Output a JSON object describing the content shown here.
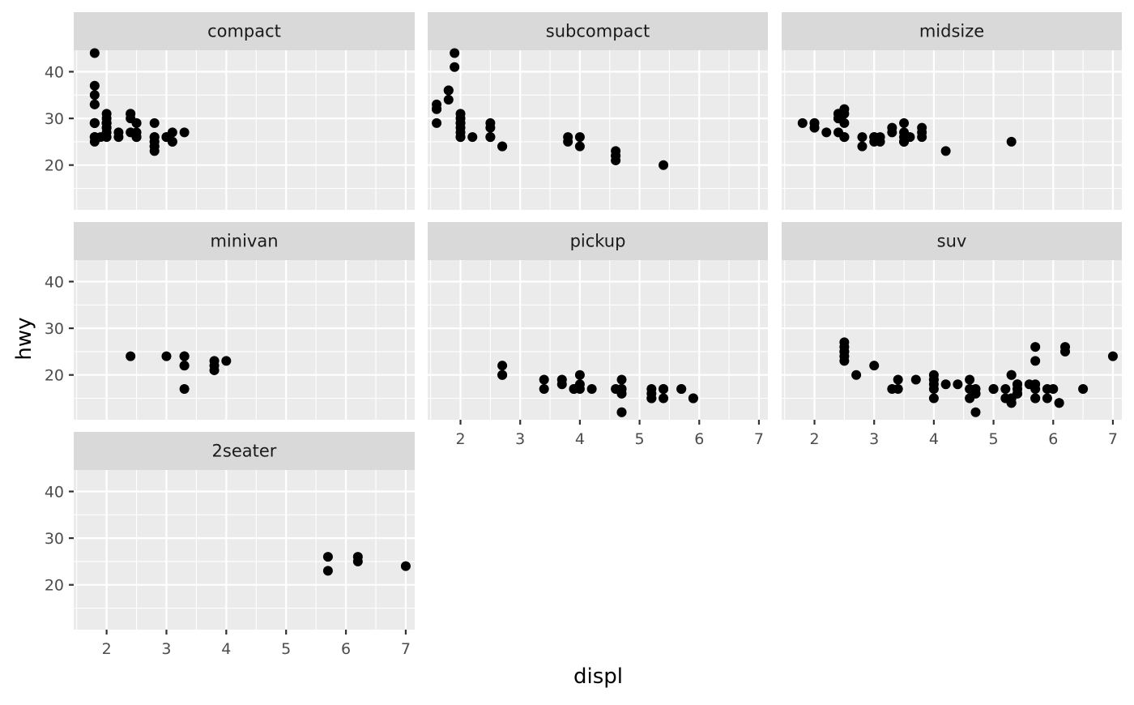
{
  "chart_data": {
    "type": "scatter",
    "xlabel": "displ",
    "ylabel": "hwy",
    "xlim": [
      1.45,
      7.15
    ],
    "ylim": [
      10.4,
      44.6
    ],
    "x_ticks": [
      2,
      3,
      4,
      5,
      6,
      7
    ],
    "y_ticks": [
      20,
      30,
      40
    ],
    "grid": true,
    "facets": [
      {
        "label": "compact",
        "points": [
          [
            1.8,
            29
          ],
          [
            1.8,
            29
          ],
          [
            2.0,
            31
          ],
          [
            2.0,
            30
          ],
          [
            2.8,
            26
          ],
          [
            2.8,
            26
          ],
          [
            3.1,
            27
          ],
          [
            1.8,
            26
          ],
          [
            1.8,
            25
          ],
          [
            2.0,
            28
          ],
          [
            2.0,
            27
          ],
          [
            2.8,
            25
          ],
          [
            2.8,
            25
          ],
          [
            3.1,
            25
          ],
          [
            3.1,
            25
          ],
          [
            2.2,
            26
          ],
          [
            2.2,
            27
          ],
          [
            2.4,
            31
          ],
          [
            2.4,
            31
          ],
          [
            3.0,
            26
          ],
          [
            3.0,
            26
          ],
          [
            3.3,
            27
          ],
          [
            1.8,
            44
          ],
          [
            1.8,
            29
          ],
          [
            1.8,
            26
          ],
          [
            2.0,
            29
          ],
          [
            2.0,
            29
          ],
          [
            2.8,
            24
          ],
          [
            2.8,
            24
          ],
          [
            1.8,
            29
          ],
          [
            1.8,
            26
          ],
          [
            1.8,
            33
          ],
          [
            2.0,
            29
          ],
          [
            2.0,
            29
          ],
          [
            1.9,
            26
          ],
          [
            2.0,
            28
          ],
          [
            2.4,
            27
          ],
          [
            2.4,
            30
          ],
          [
            2.5,
            26
          ],
          [
            2.5,
            29
          ],
          [
            2.5,
            29
          ],
          [
            2.5,
            26
          ],
          [
            2.5,
            27
          ],
          [
            2.8,
            23
          ],
          [
            2.8,
            29
          ],
          [
            1.8,
            37
          ],
          [
            1.8,
            35
          ],
          [
            1.8,
            33
          ],
          [
            2.0,
            29
          ],
          [
            2.0,
            26
          ]
        ]
      },
      {
        "label": "subcompact",
        "points": [
          [
            3.8,
            26
          ],
          [
            3.8,
            25
          ],
          [
            4.0,
            26
          ],
          [
            4.0,
            24
          ],
          [
            4.6,
            21
          ],
          [
            4.6,
            22
          ],
          [
            4.6,
            23
          ],
          [
            4.6,
            22
          ],
          [
            5.4,
            20
          ],
          [
            1.6,
            33
          ],
          [
            1.6,
            32
          ],
          [
            1.6,
            32
          ],
          [
            1.6,
            29
          ],
          [
            1.6,
            32
          ],
          [
            1.8,
            34
          ],
          [
            1.8,
            36
          ],
          [
            1.8,
            36
          ],
          [
            2.0,
            29
          ],
          [
            2.0,
            26
          ],
          [
            2.0,
            27
          ],
          [
            2.0,
            30
          ],
          [
            2.0,
            31
          ],
          [
            2.0,
            26
          ],
          [
            2.2,
            26
          ],
          [
            1.9,
            44
          ],
          [
            1.9,
            41
          ],
          [
            2.0,
            28
          ],
          [
            2.0,
            29
          ],
          [
            2.5,
            26
          ],
          [
            2.5,
            26
          ],
          [
            2.5,
            29
          ],
          [
            2.5,
            28
          ],
          [
            2.7,
            24
          ],
          [
            2.7,
            24
          ]
        ]
      },
      {
        "label": "midsize",
        "points": [
          [
            2.4,
            27
          ],
          [
            2.4,
            30
          ],
          [
            3.1,
            26
          ],
          [
            3.5,
            29
          ],
          [
            3.6,
            26
          ],
          [
            2.4,
            31
          ],
          [
            3.0,
            26
          ],
          [
            3.3,
            28
          ],
          [
            3.3,
            27
          ],
          [
            3.5,
            25
          ],
          [
            3.5,
            25
          ],
          [
            2.5,
            29
          ],
          [
            2.5,
            26
          ],
          [
            3.0,
            25
          ],
          [
            2.5,
            32
          ],
          [
            2.5,
            31
          ],
          [
            2.8,
            26
          ],
          [
            3.5,
            27
          ],
          [
            3.5,
            26
          ],
          [
            1.8,
            29
          ],
          [
            2.0,
            28
          ],
          [
            2.0,
            29
          ],
          [
            2.2,
            27
          ],
          [
            2.4,
            30
          ],
          [
            2.4,
            31
          ],
          [
            2.5,
            26
          ],
          [
            3.0,
            26
          ],
          [
            3.5,
            25
          ],
          [
            3.8,
            27
          ],
          [
            3.8,
            28
          ],
          [
            3.8,
            26
          ],
          [
            4.2,
            23
          ],
          [
            5.3,
            25
          ],
          [
            2.8,
            24
          ],
          [
            3.1,
            25
          ],
          [
            2.0,
            29
          ]
        ]
      },
      {
        "label": "minivan",
        "points": [
          [
            2.4,
            24
          ],
          [
            3.0,
            24
          ],
          [
            3.3,
            22
          ],
          [
            3.3,
            22
          ],
          [
            3.3,
            24
          ],
          [
            3.3,
            24
          ],
          [
            3.3,
            17
          ],
          [
            3.8,
            22
          ],
          [
            3.8,
            21
          ],
          [
            3.8,
            23
          ],
          [
            4.0,
            23
          ]
        ]
      },
      {
        "label": "pickup",
        "points": [
          [
            3.7,
            19
          ],
          [
            3.7,
            18
          ],
          [
            3.9,
            17
          ],
          [
            3.9,
            17
          ],
          [
            4.7,
            16
          ],
          [
            4.7,
            16
          ],
          [
            4.7,
            12
          ],
          [
            5.2,
            17
          ],
          [
            5.2,
            15
          ],
          [
            5.7,
            17
          ],
          [
            5.9,
            15
          ],
          [
            4.7,
            17
          ],
          [
            4.7,
            17
          ],
          [
            4.7,
            12
          ],
          [
            5.2,
            15
          ],
          [
            5.2,
            16
          ],
          [
            5.7,
            17
          ],
          [
            5.9,
            15
          ],
          [
            2.7,
            20
          ],
          [
            2.7,
            20
          ],
          [
            2.7,
            22
          ],
          [
            3.4,
            17
          ],
          [
            3.4,
            19
          ],
          [
            4.0,
            18
          ],
          [
            4.0,
            20
          ],
          [
            4.7,
            17
          ],
          [
            4.7,
            19
          ],
          [
            4.0,
            17
          ],
          [
            4.2,
            17
          ],
          [
            4.6,
            17
          ],
          [
            5.4,
            17
          ],
          [
            5.4,
            15
          ],
          [
            5.4,
            17
          ]
        ]
      },
      {
        "label": "suv",
        "points": [
          [
            5.3,
            20
          ],
          [
            5.3,
            15
          ],
          [
            5.3,
            20
          ],
          [
            5.7,
            17
          ],
          [
            6.0,
            17
          ],
          [
            5.7,
            26
          ],
          [
            5.7,
            23
          ],
          [
            6.2,
            26
          ],
          [
            6.2,
            25
          ],
          [
            7.0,
            24
          ],
          [
            5.3,
            14
          ],
          [
            5.3,
            15
          ],
          [
            5.7,
            15
          ],
          [
            6.5,
            17
          ],
          [
            4.0,
            17
          ],
          [
            4.0,
            15
          ],
          [
            4.7,
            16
          ],
          [
            4.7,
            12
          ],
          [
            4.7,
            17
          ],
          [
            5.2,
            17
          ],
          [
            5.2,
            15
          ],
          [
            5.7,
            18
          ],
          [
            5.9,
            17
          ],
          [
            4.6,
            19
          ],
          [
            5.4,
            18
          ],
          [
            5.4,
            17
          ],
          [
            4.2,
            18
          ],
          [
            4.4,
            18
          ],
          [
            4.6,
            17
          ],
          [
            5.0,
            17
          ],
          [
            5.4,
            16
          ],
          [
            5.4,
            17
          ],
          [
            5.4,
            18
          ],
          [
            2.5,
            25
          ],
          [
            2.5,
            27
          ],
          [
            2.5,
            25
          ],
          [
            2.5,
            24
          ],
          [
            2.5,
            23
          ],
          [
            2.7,
            20
          ],
          [
            3.0,
            22
          ],
          [
            3.3,
            17
          ],
          [
            3.4,
            17
          ],
          [
            3.4,
            19
          ],
          [
            3.7,
            19
          ],
          [
            4.0,
            19
          ],
          [
            4.0,
            19
          ],
          [
            4.6,
            15
          ],
          [
            5.0,
            17
          ],
          [
            5.4,
            16
          ],
          [
            4.0,
            20
          ],
          [
            4.0,
            18
          ],
          [
            4.7,
            16
          ],
          [
            5.3,
            14
          ],
          [
            5.7,
            15
          ],
          [
            6.1,
            14
          ],
          [
            6.1,
            14
          ],
          [
            5.6,
            18
          ],
          [
            5.9,
            15
          ],
          [
            2.5,
            26
          ]
        ]
      },
      {
        "label": "2seater",
        "points": [
          [
            5.7,
            26
          ],
          [
            5.7,
            23
          ],
          [
            6.2,
            26
          ],
          [
            6.2,
            25
          ],
          [
            7.0,
            24
          ]
        ]
      }
    ]
  }
}
